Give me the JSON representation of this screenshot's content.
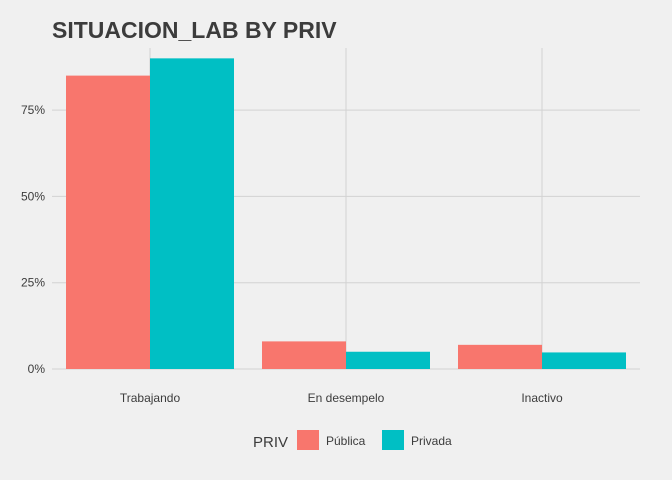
{
  "chart_data": {
    "type": "bar",
    "title": "SITUACION_LAB BY PRIV",
    "xlabel": "",
    "ylabel": "",
    "categories": [
      "Trabajando",
      "En desempelo",
      "Inactivo"
    ],
    "series": [
      {
        "name": "Pública",
        "color": "#f8766d",
        "values": [
          85,
          8,
          7
        ]
      },
      {
        "name": "Privada",
        "color": "#00bfc4",
        "values": [
          90,
          5,
          4.8
        ]
      }
    ],
    "ylim": [
      0,
      93
    ],
    "yticks": [
      0,
      25,
      50,
      75
    ],
    "ytick_labels": [
      "0%",
      "25%",
      "50%",
      "75%"
    ],
    "grid": true,
    "legend": {
      "title": "PRIV",
      "placement": "bottom"
    }
  }
}
